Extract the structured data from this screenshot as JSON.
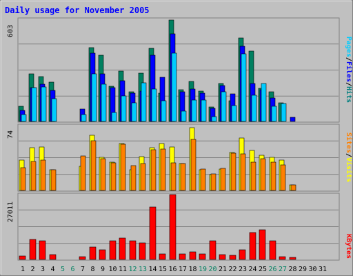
{
  "chart_data": {
    "type": "bar",
    "title": "Daily usage for November 2005",
    "categories": [
      "1",
      "2",
      "3",
      "4",
      "5",
      "6",
      "7",
      "8",
      "9",
      "10",
      "11",
      "12",
      "13",
      "14",
      "15",
      "16",
      "17",
      "18",
      "19",
      "20",
      "21",
      "22",
      "23",
      "24",
      "25",
      "26",
      "27",
      "28",
      "29",
      "30",
      "31"
    ],
    "weekend_days": [
      "5",
      "6",
      "12",
      "13",
      "19",
      "20",
      "26",
      "27"
    ],
    "panels": [
      {
        "id": "pages-files-hits",
        "ymax_label": "603",
        "ylim": [
          0,
          603
        ],
        "right_label_parts": [
          {
            "text": "Pages",
            "color": "#00ccff"
          },
          {
            "text": "/",
            "color": "#000000"
          },
          {
            "text": "Files",
            "color": "#0000ff"
          },
          {
            "text": "/",
            "color": "#000000"
          },
          {
            "text": "Hits",
            "color": "#008080"
          }
        ],
        "series": [
          {
            "name": "Hits",
            "color": "#008060",
            "values": [
              89,
              279,
              262,
              229,
              0,
              0,
              0,
              434,
              387,
              205,
              295,
              175,
              284,
              431,
              165,
              595,
              187,
              233,
              180,
              83,
              223,
              120,
              491,
              411,
              193,
              174,
              111,
              0,
              0,
              0,
              0
            ]
          },
          {
            "name": "Files",
            "color": "#0000ff",
            "values": [
              63,
              198,
              220,
              184,
              0,
              0,
              71,
              401,
              279,
              199,
              239,
              165,
              180,
              387,
              260,
              513,
              173,
              189,
              164,
              75,
              212,
              163,
              442,
              223,
              186,
              136,
              0,
              26,
              0,
              0,
              0
            ]
          },
          {
            "name": "Pages",
            "color": "#00ccff",
            "values": [
              42,
              198,
              201,
              132,
              0,
              0,
              39,
              281,
              219,
              53,
              149,
              108,
              228,
              190,
              121,
              401,
              61,
              125,
              126,
              29,
              174,
              94,
              398,
              153,
              223,
              90,
              106,
              0,
              0,
              0,
              0
            ]
          }
        ]
      },
      {
        "id": "visits-sites",
        "ymax_label": "74",
        "ylim": [
          0,
          74
        ],
        "right_label_parts": [
          {
            "text": "Sites",
            "color": "#ff8000"
          },
          {
            "text": "/",
            "color": "#000000"
          },
          {
            "text": "Visits",
            "color": "#ffff00"
          }
        ],
        "series": [
          {
            "name": "Visits",
            "color": "#ffff00",
            "values": [
              34,
              48,
              49,
              23,
              0,
              0,
              27,
              62,
              37,
              32,
              53,
              23,
              38,
              48,
              53,
              49,
              30,
              71,
              23,
              18,
              24,
              43,
              59,
              45,
              40,
              37,
              34,
              6,
              0,
              0,
              0
            ]
          },
          {
            "name": "Sites",
            "color": "#ff8000",
            "values": [
              26,
              33,
              34,
              23,
              0,
              0,
              39,
              56,
              36,
              31,
              52,
              28,
              30,
              46,
              47,
              31,
              30,
              58,
              24,
              19,
              25,
              42,
              41,
              32,
              36,
              32,
              29,
              6,
              0,
              0,
              0
            ]
          }
        ]
      },
      {
        "id": "kbytes",
        "ymax_label": "27011",
        "ylim": [
          0,
          27011
        ],
        "right_label_parts": [
          {
            "text": "KBytes",
            "color": "#ff0000"
          }
        ],
        "series": [
          {
            "name": "KBytes",
            "color": "#ff0000",
            "values": [
              1389,
              8234,
              7542,
              2059,
              0,
              0,
              1054,
              5213,
              4102,
              7542,
              8920,
              7542,
              6859,
              21612,
              2401,
              26760,
              2401,
              3084,
              2401,
              7542,
              2059,
              1716,
              4102,
              10955,
              12307,
              7542,
              1054,
              741,
              0,
              0,
              0
            ]
          }
        ]
      }
    ]
  }
}
